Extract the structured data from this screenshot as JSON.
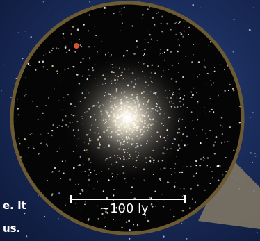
{
  "caption": {
    "line1_fragment": "e. It",
    "line2_fragment": "us."
  },
  "scale_bar": {
    "label": "~100 ly"
  },
  "colors": {
    "background_sky": "#1a2d5c",
    "circle_border": "#6b5a32",
    "zoom_wedge": "#8c7f66",
    "text": "#ffffff"
  }
}
